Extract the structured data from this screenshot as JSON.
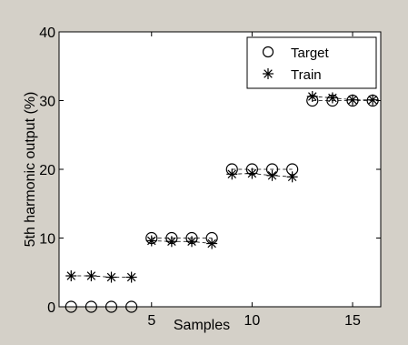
{
  "chart_data": {
    "type": "scatter",
    "title": "",
    "xlabel": "Samples",
    "ylabel": "5th harmonic output (%)",
    "xlim": [
      0.4,
      16.4
    ],
    "ylim": [
      0,
      40
    ],
    "x_ticks": [
      5,
      10,
      15
    ],
    "y_ticks": [
      0,
      10,
      20,
      30,
      40
    ],
    "x_tick_labels": [
      "5",
      "10",
      "15"
    ],
    "y_tick_labels": [
      "0",
      "10",
      "20",
      "30",
      "40"
    ],
    "grid": false,
    "legend_position": "top-right",
    "x": [
      1,
      2,
      3,
      4,
      5,
      6,
      7,
      8,
      9,
      10,
      11,
      12,
      13,
      14,
      15,
      16
    ],
    "series": [
      {
        "name": "Target",
        "marker": "circle",
        "line": "dashed",
        "values": [
          0,
          0,
          0,
          0,
          10,
          10,
          10,
          10,
          20,
          20,
          20,
          20,
          30,
          30,
          30,
          30
        ]
      },
      {
        "name": "Train",
        "marker": "star",
        "line": "dashed",
        "values": [
          4.5,
          4.5,
          4.3,
          4.3,
          9.6,
          9.5,
          9.5,
          9.2,
          19.3,
          19.4,
          19.1,
          18.9,
          30.6,
          30.4,
          30.1,
          30.1
        ]
      }
    ],
    "colors": {
      "background": "#d4d0c8",
      "plot_area": "#ffffff",
      "axes": "#000000",
      "markers": "#000000"
    }
  }
}
